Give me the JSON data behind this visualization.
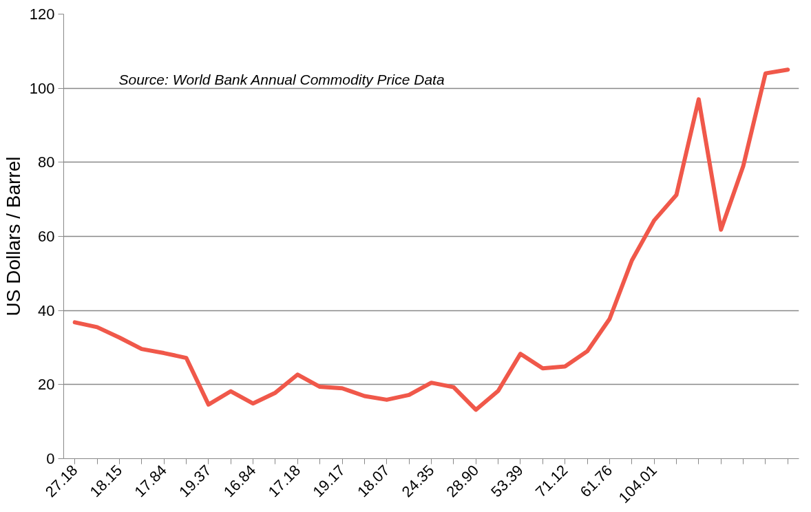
{
  "chart_data": {
    "type": "line",
    "ylabel": "US Dollars / Barrel",
    "annotations": [
      "Source: World Bank Annual Commodity Price Data"
    ],
    "categories": [
      "27.18",
      null,
      "18.15",
      null,
      "17.84",
      null,
      "19.37",
      null,
      "16.84",
      null,
      "17.18",
      null,
      "19.17",
      null,
      "18.07",
      null,
      "24.35",
      null,
      "28.90",
      null,
      "53.39",
      null,
      "71.12",
      null,
      "61.76",
      null,
      "104.01",
      null,
      null,
      null,
      null,
      null,
      null
    ],
    "series": [
      {
        "color": "#f0584a",
        "values": [
          36.8,
          35.5,
          32.7,
          29.6,
          28.5,
          27.2,
          14.6,
          18.2,
          14.9,
          17.8,
          22.7,
          19.4,
          19.0,
          16.9,
          15.9,
          17.2,
          20.5,
          19.3,
          13.2,
          18.3,
          28.3,
          24.4,
          24.9,
          29.0,
          37.7,
          53.5,
          64.3,
          71.2,
          97.0,
          61.8,
          79.0,
          104.0,
          105.0
        ]
      }
    ],
    "ylim": [
      0,
      120
    ],
    "yticks": [
      0,
      20,
      40,
      60,
      80,
      100,
      120
    ],
    "grid": "y",
    "marker": "none",
    "line_style": "solid"
  }
}
